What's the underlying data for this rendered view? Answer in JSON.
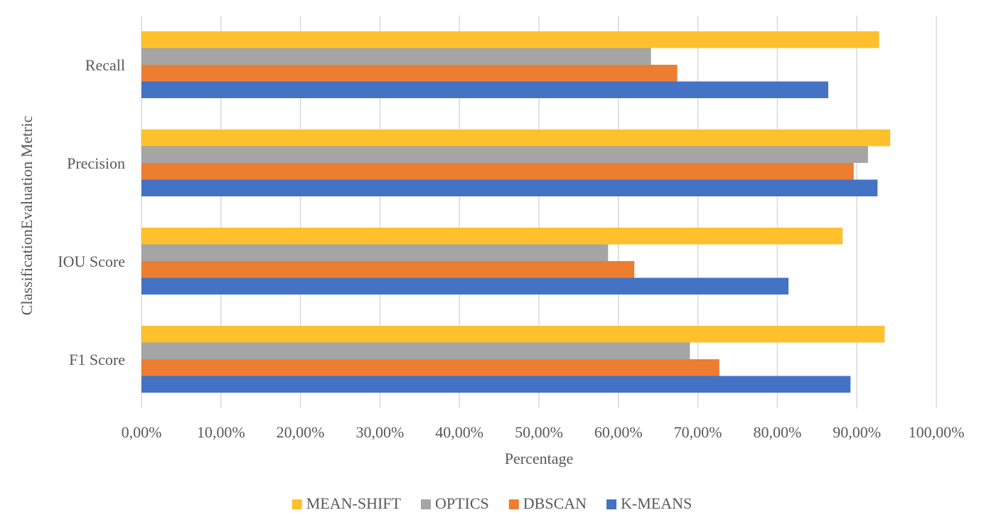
{
  "chart_data": {
    "type": "bar",
    "orientation": "horizontal",
    "categories": [
      "Recall",
      "Precision",
      "IOU Score",
      "F1 Score"
    ],
    "series": [
      {
        "name": "MEAN-SHIFT",
        "color": "#FFC02D",
        "values": [
          92.8,
          94.2,
          88.2,
          93.5
        ]
      },
      {
        "name": "OPTICS",
        "color": "#A5A5A5",
        "values": [
          64.1,
          91.4,
          58.7,
          69.0
        ]
      },
      {
        "name": "DBSCAN",
        "color": "#ED7D31",
        "values": [
          67.4,
          89.6,
          62.0,
          72.7
        ]
      },
      {
        "name": "K-MEANS",
        "color": "#4472C4",
        "values": [
          86.4,
          92.6,
          81.4,
          89.2
        ]
      }
    ],
    "xlabel": "Percentage",
    "ylabel": "ClassificationEvaluation Metric",
    "xlim": [
      0,
      100
    ],
    "xticks": [
      0,
      10,
      20,
      30,
      40,
      50,
      60,
      70,
      80,
      90,
      100
    ],
    "xtick_labels": [
      "0,00%",
      "10,00%",
      "20,00%",
      "30,00%",
      "40,00%",
      "50,00%",
      "60,00%",
      "70,00%",
      "80,00%",
      "90,00%",
      "100,00%"
    ],
    "grid": "vertical",
    "legend": "bottom-center"
  }
}
